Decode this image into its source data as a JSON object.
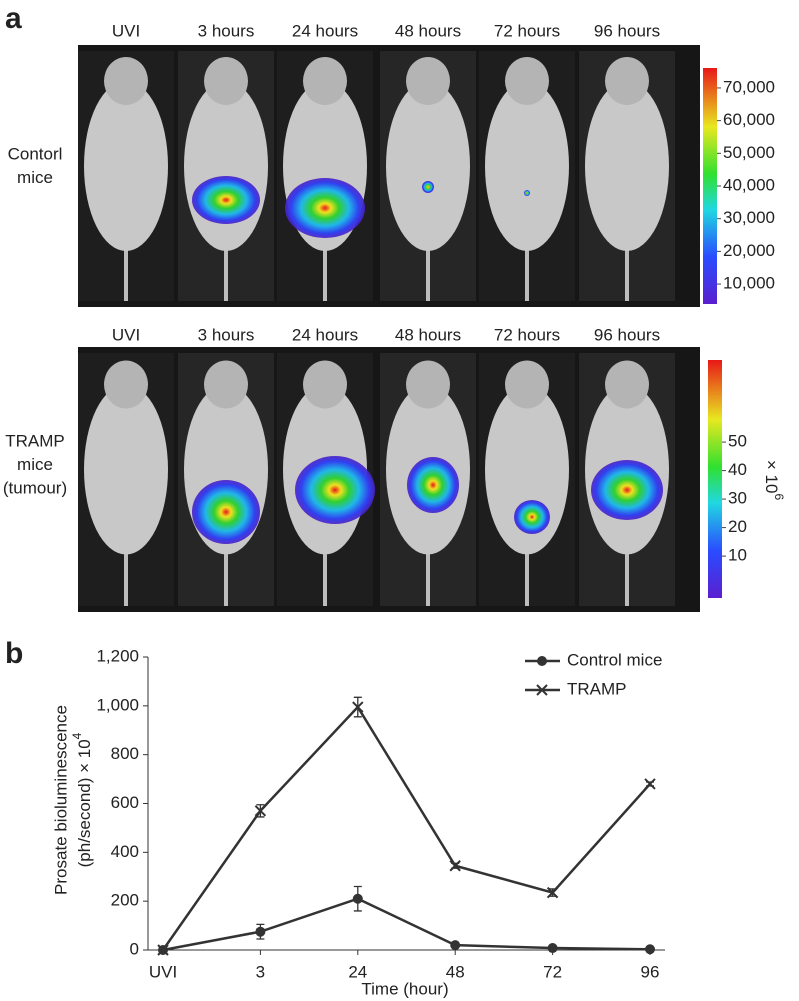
{
  "panel_a": {
    "label": "a",
    "rows": [
      {
        "label": [
          "Contorl",
          "mice"
        ],
        "timepoints": [
          "UVI",
          "3 hours",
          "24 hours",
          "48 hours",
          "72 hours",
          "96 hours"
        ],
        "colorbar": {
          "lim": [
            3900,
            76100
          ],
          "ticks": [
            {
              "value": 10000,
              "label": "10,000"
            },
            {
              "value": 20000,
              "label": "20,000"
            },
            {
              "value": 30000,
              "label": "30,000"
            },
            {
              "value": 40000,
              "label": "40,000"
            },
            {
              "value": 50000,
              "label": "50,000"
            },
            {
              "value": 60000,
              "label": "60,000"
            },
            {
              "value": 70000,
              "label": "70,000"
            }
          ]
        }
      },
      {
        "label": [
          "TRAMP",
          "mice",
          "(tumour)"
        ],
        "timepoints": [
          "UVI",
          "3 hours",
          "24 hours",
          "48 hours",
          "72 hours",
          "96 hours"
        ],
        "colorbar": {
          "lim": [
            -4.7,
            78.8
          ],
          "ticks": [
            10,
            20,
            30,
            40,
            50
          ],
          "unit": "× 10",
          "exponent": "6"
        }
      }
    ]
  },
  "chart_data": {
    "type": "line",
    "label": "b",
    "categories": [
      "UVI",
      "3",
      "24",
      "48",
      "72",
      "96"
    ],
    "series": [
      {
        "name": "Control mice",
        "color": "#333333",
        "marker": "circle",
        "values": [
          0,
          75,
          210,
          20,
          8,
          3
        ],
        "errors": [
          0,
          30,
          50,
          5,
          3,
          2
        ]
      },
      {
        "name": "TRAMP",
        "color": "#333333",
        "marker": "x",
        "values": [
          0,
          570,
          995,
          345,
          235,
          680
        ],
        "errors": [
          0,
          25,
          40,
          10,
          15,
          8
        ]
      }
    ],
    "ylim": [
      0,
      1200
    ],
    "yticks": [
      0,
      200,
      400,
      600,
      800,
      {
        "value": 1000,
        "label": "1,000"
      },
      {
        "value": 1200,
        "label": "1,200"
      }
    ],
    "xlabel": "Time (hour)",
    "ylabel": [
      "Prosate bioluminescence",
      "(ph/second) × 10"
    ],
    "ylabel_exponent": "4",
    "legend": "upper right",
    "grid": false
  }
}
